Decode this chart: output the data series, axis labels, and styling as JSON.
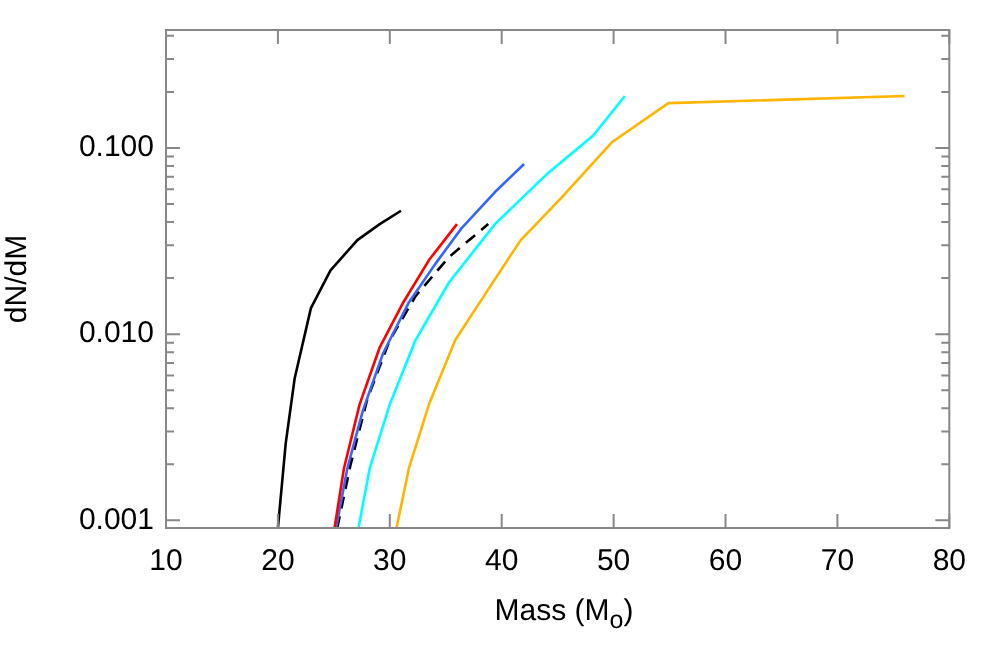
{
  "chart_data": {
    "type": "line",
    "xlabel": "Mass (M$_{o}$)",
    "ylabel": "dN/dM",
    "log": "y",
    "grid": false,
    "legend": false,
    "marker": "none",
    "xlim": [
      10,
      80
    ],
    "xticks": [
      10,
      20,
      30,
      40,
      50,
      60,
      70,
      80
    ],
    "ylim": [
      0.00091,
      0.43
    ],
    "yticks": [
      {
        "value": 0.001,
        "label": "0.001"
      },
      {
        "value": 0.002,
        "label": null
      },
      {
        "value": 0.003,
        "label": null
      },
      {
        "value": 0.004,
        "label": null
      },
      {
        "value": 0.005,
        "label": null
      },
      {
        "value": 0.006,
        "label": null
      },
      {
        "value": 0.007,
        "label": null
      },
      {
        "value": 0.008,
        "label": null
      },
      {
        "value": 0.009,
        "label": null
      },
      {
        "value": 0.01,
        "label": "0.010"
      },
      {
        "value": 0.02,
        "label": null
      },
      {
        "value": 0.03,
        "label": null
      },
      {
        "value": 0.04,
        "label": null
      },
      {
        "value": 0.05,
        "label": null
      },
      {
        "value": 0.06,
        "label": null
      },
      {
        "value": 0.07,
        "label": null
      },
      {
        "value": 0.08,
        "label": null
      },
      {
        "value": 0.09,
        "label": null
      },
      {
        "value": 0.1,
        "label": "0.100"
      },
      {
        "value": 0.2,
        "label": null
      },
      {
        "value": 0.3,
        "label": null
      },
      {
        "value": 0.4,
        "label": null
      }
    ],
    "series": [
      {
        "color": "#000000",
        "x": [
          20.0,
          20.7,
          21.5,
          22.95,
          24.7,
          27.1,
          29.1,
          31.0
        ],
        "values": [
          0.00091,
          0.0026,
          0.0058,
          0.0138,
          0.022,
          0.032,
          0.039,
          0.046
        ]
      },
      {
        "color": "#ff0000",
        "x": [
          25.06,
          25.9,
          27.3,
          29.1,
          31.2,
          33.5,
          36.0
        ],
        "values": [
          0.00091,
          0.0019,
          0.0042,
          0.0085,
          0.0148,
          0.025,
          0.039
        ]
      },
      {
        "color": "#3366ff",
        "x": [
          25.2,
          26.2,
          27.6,
          29.4,
          31.7,
          34.1,
          36.4,
          39.4,
          42.0
        ],
        "values": [
          0.00091,
          0.0019,
          0.0039,
          0.0079,
          0.0148,
          0.024,
          0.037,
          0.058,
          0.082
        ]
      },
      {
        "color": "#000000",
        "line_style": "dashed",
        "x": [
          25.3,
          26.5,
          28.0,
          30.0,
          32.3,
          35.3,
          38.8
        ],
        "values": [
          0.00091,
          0.002,
          0.0045,
          0.0093,
          0.016,
          0.026,
          0.039
        ]
      },
      {
        "color": "#00ffff",
        "x": [
          27.2,
          28.2,
          30.0,
          32.3,
          35.3,
          39.4,
          44.1,
          48.2,
          51.0
        ],
        "values": [
          0.00091,
          0.0019,
          0.0042,
          0.0093,
          0.019,
          0.039,
          0.073,
          0.117,
          0.19
        ]
      },
      {
        "color": "#ffb400",
        "x": [
          30.6,
          31.7,
          33.5,
          35.85,
          38.8,
          41.7,
          45.2,
          49.9,
          54.9,
          76.0
        ],
        "values": [
          0.00091,
          0.0019,
          0.0042,
          0.0093,
          0.0174,
          0.032,
          0.053,
          0.108,
          0.174,
          0.19
        ]
      }
    ]
  }
}
